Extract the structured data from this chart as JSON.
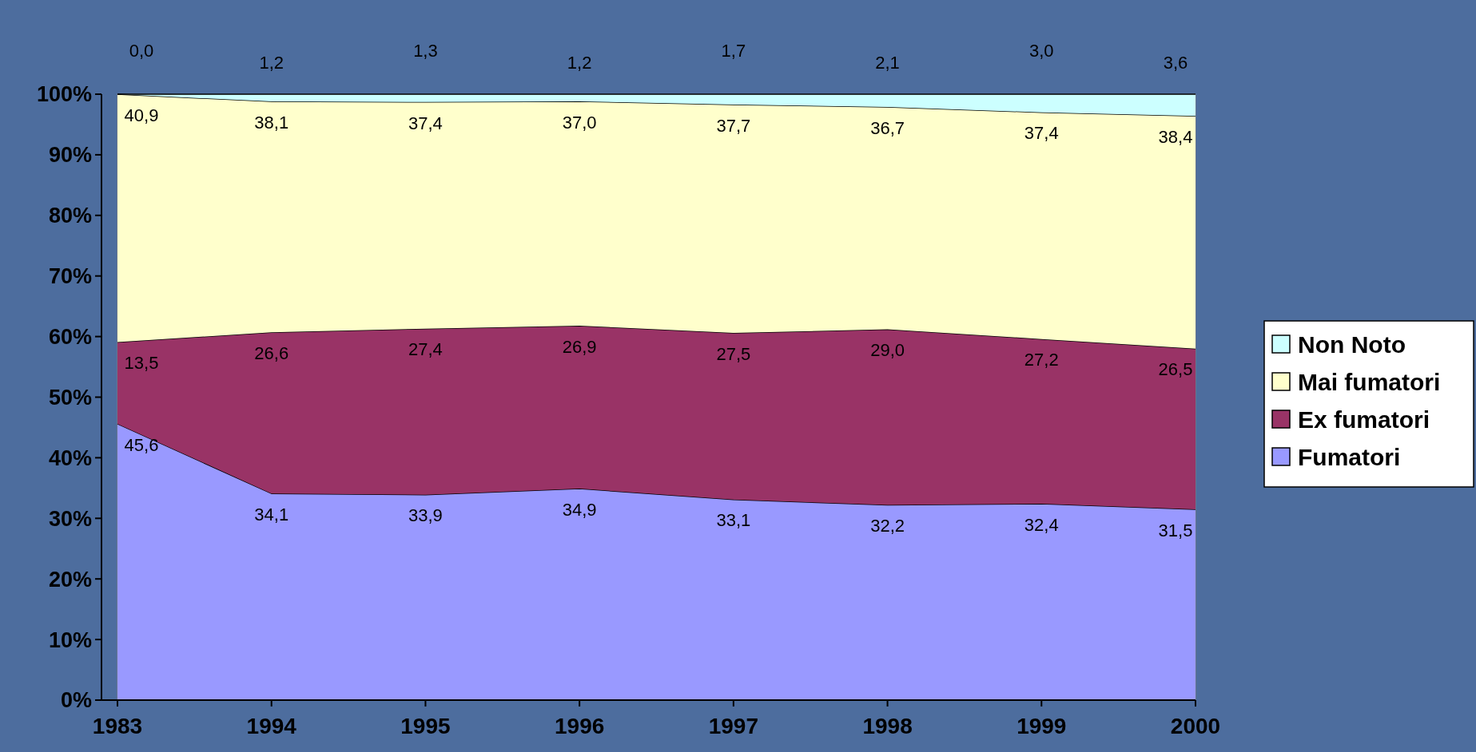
{
  "chart_data": {
    "type": "area",
    "stacked": true,
    "legend": "right",
    "categories": [
      "1983",
      "1994",
      "1995",
      "1996",
      "1997",
      "1998",
      "1999",
      "2000"
    ],
    "ylim": [
      0,
      100
    ],
    "yticks": [
      {
        "value": 0,
        "label": "0%"
      },
      {
        "value": 10,
        "label": "10%"
      },
      {
        "value": 20,
        "label": "20%"
      },
      {
        "value": 30,
        "label": "30%"
      },
      {
        "value": 40,
        "label": "40%"
      },
      {
        "value": 50,
        "label": "50%"
      },
      {
        "value": 60,
        "label": "60%"
      },
      {
        "value": 70,
        "label": "70%"
      },
      {
        "value": 80,
        "label": "80%"
      },
      {
        "value": 90,
        "label": "90%"
      },
      {
        "value": 100,
        "label": "100%"
      }
    ],
    "series": [
      {
        "name": "Fumatori",
        "color": "#9999ff",
        "values": [
          45.6,
          34.1,
          33.9,
          34.9,
          33.1,
          32.2,
          32.4,
          31.5
        ],
        "value_labels": [
          "45,6",
          "34,1",
          "33,9",
          "34,9",
          "33,1",
          "32,2",
          "32,4",
          "31,5"
        ]
      },
      {
        "name": "Ex fumatori",
        "color": "#993366",
        "values": [
          13.5,
          26.6,
          27.4,
          26.9,
          27.5,
          29.0,
          27.2,
          26.5
        ],
        "value_labels": [
          "13,5",
          "26,6",
          "27,4",
          "26,9",
          "27,5",
          "29,0",
          "27,2",
          "26,5"
        ]
      },
      {
        "name": "Mai fumatori",
        "color": "#ffffcc",
        "values": [
          40.9,
          38.1,
          37.4,
          37.0,
          37.7,
          36.7,
          37.4,
          38.4
        ],
        "value_labels": [
          "40,9",
          "38,1",
          "37,4",
          "37,0",
          "37,7",
          "36,7",
          "37,4",
          "38,4"
        ]
      },
      {
        "name": "Non Noto",
        "color": "#ccffff",
        "values": [
          0.0,
          1.2,
          1.3,
          1.2,
          1.7,
          2.1,
          3.0,
          3.6
        ],
        "value_labels": [
          "0,0",
          "1,2",
          "1,3",
          "1,2",
          "1,7",
          "2,1",
          "3,0",
          "3,6"
        ]
      }
    ]
  }
}
